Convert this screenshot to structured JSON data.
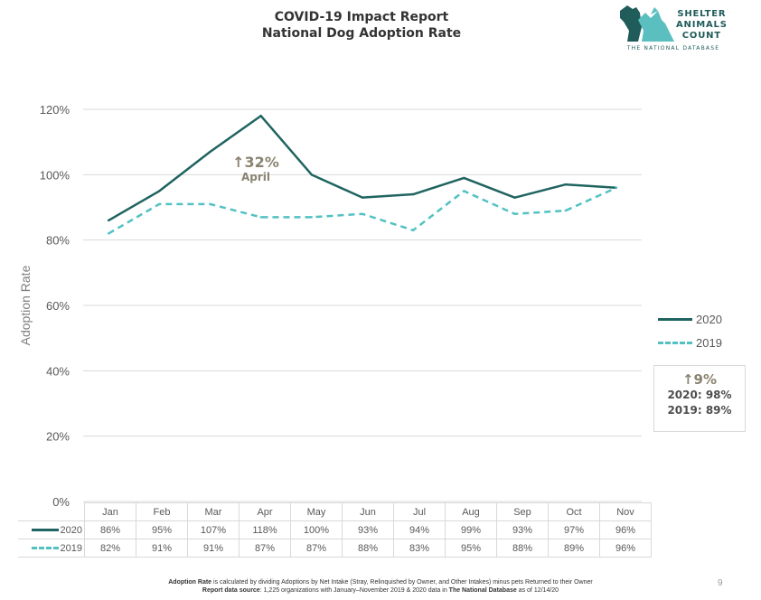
{
  "header": {
    "title_line1": "COVID-19 Impact Report",
    "title_line2": "National Dog Adoption Rate"
  },
  "logo": {
    "line1": "SHELTER",
    "line2": "ANIMALS",
    "line3": "COUNT",
    "subtitle": "THE NATIONAL DATABASE",
    "icon": "dog-cat-silhouette-icon",
    "colors": {
      "dark": "#1f5c5a",
      "light": "#5bbfc0"
    }
  },
  "chart_data": {
    "type": "line",
    "ylabel": "Adoption Rate",
    "ylim": [
      0,
      120
    ],
    "yticks": [
      "0%",
      "20%",
      "40%",
      "60%",
      "80%",
      "100%",
      "120%"
    ],
    "categories": [
      "Jan",
      "Feb",
      "Mar",
      "Apr",
      "May",
      "Jun",
      "Jul",
      "Aug",
      "Sep",
      "Oct",
      "Nov"
    ],
    "series": [
      {
        "name": "2020",
        "style": "solid",
        "color": "#1f6460",
        "values": [
          86,
          95,
          107,
          118,
          100,
          93,
          94,
          99,
          93,
          97,
          96
        ],
        "labels": [
          "86%",
          "95%",
          "107%",
          "118%",
          "100%",
          "93%",
          "94%",
          "99%",
          "93%",
          "97%",
          "96%"
        ]
      },
      {
        "name": "2019",
        "style": "dashed",
        "color": "#53c1c2",
        "values": [
          82,
          91,
          91,
          87,
          87,
          88,
          83,
          95,
          88,
          89,
          96
        ],
        "labels": [
          "82%",
          "91%",
          "91%",
          "87%",
          "87%",
          "88%",
          "83%",
          "95%",
          "88%",
          "89%",
          "96%"
        ]
      }
    ],
    "grid": true,
    "legend": "right",
    "annotation": {
      "arrow": "↑",
      "value": "32%",
      "label": "April"
    }
  },
  "summary": {
    "arrow": "↑",
    "change": "9%",
    "line1": "2020: 98%",
    "line2": "2019: 89%"
  },
  "footnote": {
    "line1_bold": "Adoption Rate",
    "line1_rest": " is calculated by dividing Adoptions by Net Intake (Stray, Relinquished by Owner, and Other Intakes) minus pets Returned to their Owner",
    "line2_bold": "Report data source",
    "line2_mid": ": 1,225 organizations with January–November 2019 & 2020 data in ",
    "line2_bold2": "The National Database",
    "line2_end": " as of 12/14/20"
  },
  "page_number": "9"
}
